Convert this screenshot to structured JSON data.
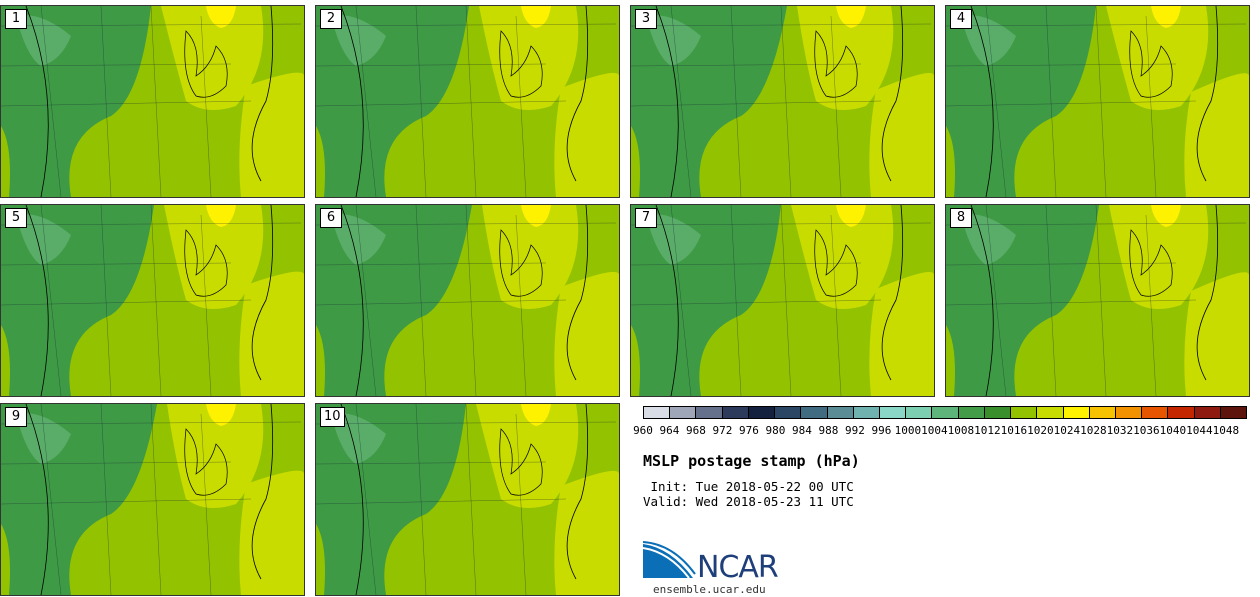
{
  "panels": [
    {
      "label": "1"
    },
    {
      "label": "2"
    },
    {
      "label": "3"
    },
    {
      "label": "4"
    },
    {
      "label": "5"
    },
    {
      "label": "6"
    },
    {
      "label": "7"
    },
    {
      "label": "8"
    },
    {
      "label": "9"
    },
    {
      "label": "10"
    }
  ],
  "colorbar": {
    "colors": [
      "#d9dde6",
      "#9ea6b8",
      "#65718a",
      "#2c3a5b",
      "#13213f",
      "#2b4665",
      "#416b80",
      "#5a8c96",
      "#6fb2b0",
      "#8ad7c7",
      "#7ccfb0",
      "#5db57b",
      "#439c47",
      "#3a8f2d",
      "#93c200",
      "#c8dc00",
      "#fff200",
      "#f7c300",
      "#f29200",
      "#e85500",
      "#c42700",
      "#8f1a10",
      "#5c140d"
    ],
    "ticks": [
      "960",
      "964",
      "968",
      "972",
      "976",
      "980",
      "984",
      "988",
      "992",
      "996",
      "1000",
      "1004",
      "1008",
      "1012",
      "1016",
      "1020",
      "1024",
      "1028",
      "1032",
      "1036",
      "1040",
      "1044",
      "1048"
    ]
  },
  "title": "MSLP postage stamp (hPa)",
  "init": " Init: Tue 2018-05-22 00 UTC",
  "valid": "Valid: Wed 2018-05-23 11 UTC",
  "logo": {
    "word": "NCAR",
    "url": "ensemble.ucar.edu",
    "color": "#1f3f7a"
  }
}
